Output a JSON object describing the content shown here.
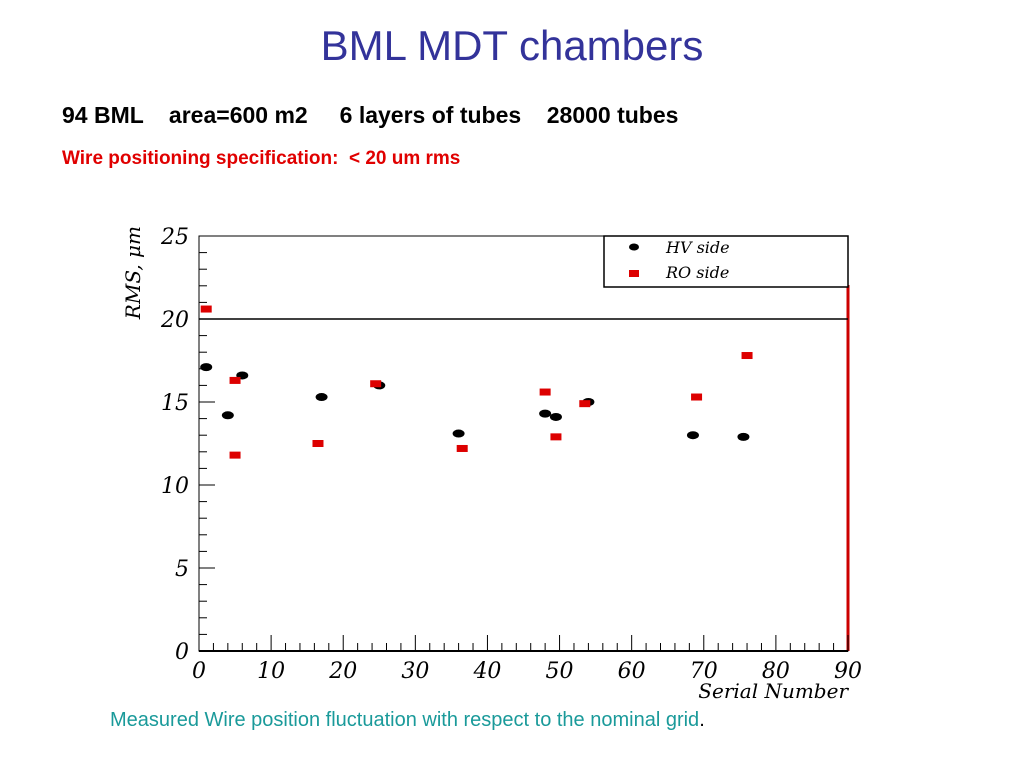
{
  "slide": {
    "title": "BML MDT chambers",
    "subtitle": "94 BML    area=600 m2     6 layers of tubes    28000 tubes",
    "spec": "Wire positioning specification:  < 20 um rms",
    "caption": "Measured Wire position fluctuation with respect to the nominal grid",
    "caption_end": "."
  },
  "colors": {
    "title": "#33339a",
    "spec": "#e00000",
    "caption": "#1a9a9a",
    "hv": "#000000",
    "ro": "#dd0000",
    "right_axis": "#cc0000"
  },
  "chart_data": {
    "type": "scatter",
    "xlabel": "Serial Number",
    "ylabel": "RMS, μm",
    "xlim": [
      0,
      90
    ],
    "ylim": [
      0,
      25
    ],
    "xticks": [
      0,
      10,
      20,
      30,
      40,
      50,
      60,
      70,
      80,
      90
    ],
    "yticks": [
      0,
      5,
      10,
      15,
      20,
      25
    ],
    "spec_line": 20,
    "grid": false,
    "legend_position": "top-right",
    "series": [
      {
        "name": "HV side",
        "marker": "circle",
        "points": [
          [
            1,
            17.1
          ],
          [
            4,
            14.2
          ],
          [
            6,
            16.6
          ],
          [
            17,
            15.3
          ],
          [
            25,
            16
          ],
          [
            36,
            13.1
          ],
          [
            48,
            14.3
          ],
          [
            49.5,
            14.1
          ],
          [
            54,
            15
          ],
          [
            68.5,
            13
          ],
          [
            75.5,
            12.9
          ]
        ]
      },
      {
        "name": "RO side",
        "marker": "square",
        "points": [
          [
            1,
            20.6
          ],
          [
            5,
            16.3
          ],
          [
            5,
            11.8
          ],
          [
            16.5,
            12.5
          ],
          [
            24.5,
            16.1
          ],
          [
            36.5,
            12.2
          ],
          [
            48,
            15.6
          ],
          [
            49.5,
            12.9
          ],
          [
            53.5,
            14.9
          ],
          [
            69,
            15.3
          ],
          [
            76,
            17.8
          ]
        ]
      }
    ]
  }
}
